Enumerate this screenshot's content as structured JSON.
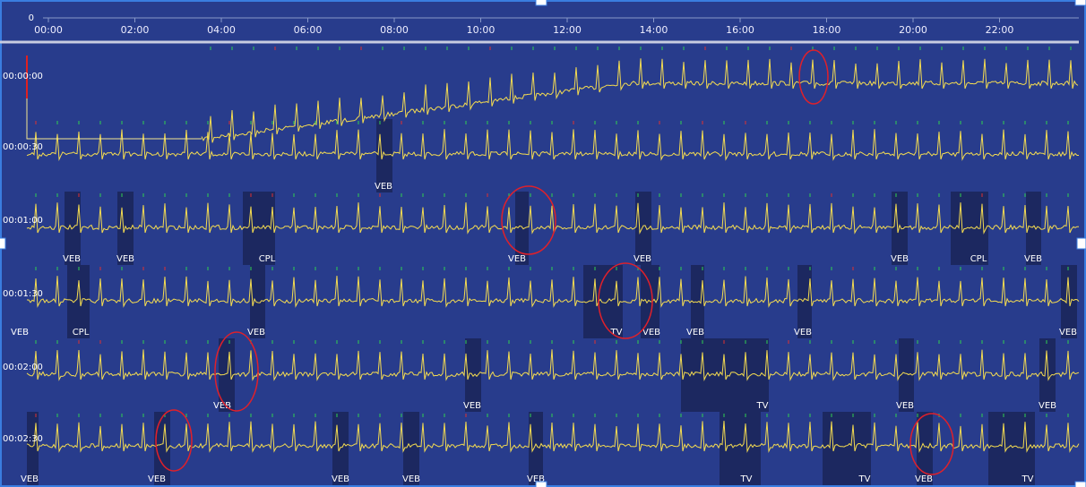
{
  "timeline": {
    "zero": "0",
    "ticks": [
      "00:00",
      "02:00",
      "04:00",
      "06:00",
      "08:00",
      "10:00",
      "12:00",
      "14:00",
      "16:00",
      "18:00",
      "20:00",
      "22:00"
    ]
  },
  "rows": [
    {
      "time": "00:00:00",
      "events": []
    },
    {
      "time": "00:00:30",
      "events": [
        {
          "label": "VEB"
        }
      ]
    },
    {
      "time": "00:01:00",
      "events": [
        {
          "label": "VEB"
        },
        {
          "label": "VEB"
        },
        {
          "label": "CPL"
        },
        {
          "label": "VEB"
        },
        {
          "label": "VEB"
        },
        {
          "label": "VEB"
        },
        {
          "label": "CPL"
        },
        {
          "label": "VEB"
        }
      ]
    },
    {
      "time": "00:01:30",
      "events": [
        {
          "label": "VEB"
        },
        {
          "label": "CPL"
        },
        {
          "label": "VEB"
        },
        {
          "label": "TV"
        },
        {
          "label": "VEB"
        },
        {
          "label": "VEB"
        },
        {
          "label": "VEB"
        },
        {
          "label": "VEB"
        }
      ]
    },
    {
      "time": "00:02:00",
      "events": [
        {
          "label": "VEB"
        },
        {
          "label": "VEB"
        },
        {
          "label": "TV"
        },
        {
          "label": "VEB"
        },
        {
          "label": "VEB"
        }
      ]
    },
    {
      "time": "00:02:30",
      "events": [
        {
          "label": "VEB"
        },
        {
          "label": "VEB"
        },
        {
          "label": "VEB"
        },
        {
          "label": "VEB"
        },
        {
          "label": "VEB"
        },
        {
          "label": "TV"
        },
        {
          "label": "TV"
        },
        {
          "label": "VEB"
        },
        {
          "label": "TV"
        }
      ]
    }
  ]
}
